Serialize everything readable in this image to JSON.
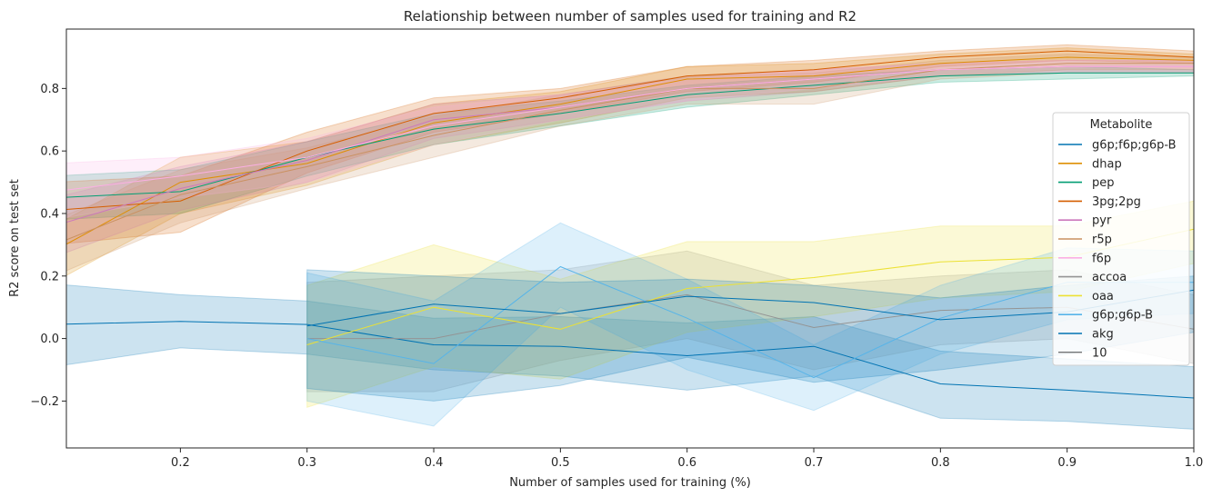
{
  "chart_data": {
    "type": "line",
    "title": "Relationship between number of samples used for training and R2",
    "xlabel": "Number of samples used for training (%)",
    "ylabel": "R2 score on test set",
    "xlim": [
      0.11,
      1.0
    ],
    "ylim": [
      -0.35,
      0.99
    ],
    "x_ticks": [
      0.2,
      0.3,
      0.4,
      0.5,
      0.6,
      0.7,
      0.8,
      0.9,
      1.0
    ],
    "x_tick_labels": [
      "0.2",
      "0.3",
      "0.4",
      "0.5",
      "0.6",
      "0.7",
      "0.8",
      "0.9",
      "1.0"
    ],
    "y_ticks": [
      -0.2,
      0.0,
      0.2,
      0.4,
      0.6,
      0.8
    ],
    "y_tick_labels": [
      "−0.2",
      "0.0",
      "0.2",
      "0.4",
      "0.6",
      "0.8"
    ],
    "grid": false,
    "legend": {
      "title": "Metabolite",
      "placement": "right",
      "size_entry": "10"
    },
    "series": [
      {
        "name": "g6p;f6p;g6p-B",
        "color": "#0173b2",
        "x": [
          0.1,
          0.2,
          0.3,
          0.4,
          0.5,
          0.6,
          0.7,
          0.8,
          0.9,
          1.0
        ],
        "y": [
          0.045,
          0.055,
          0.045,
          -0.02,
          -0.025,
          -0.055,
          -0.025,
          -0.145,
          -0.165,
          -0.19
        ],
        "lower": [
          -0.09,
          -0.03,
          -0.05,
          -0.1,
          -0.12,
          -0.165,
          -0.12,
          -0.255,
          -0.265,
          -0.29
        ],
        "upper": [
          0.175,
          0.14,
          0.12,
          0.065,
          0.07,
          0.05,
          0.07,
          -0.04,
          -0.065,
          -0.09
        ]
      },
      {
        "name": "dhap",
        "color": "#de8f05",
        "x": [
          0.1,
          0.2,
          0.3,
          0.4,
          0.5,
          0.6,
          0.7,
          0.8,
          0.9,
          1.0
        ],
        "y": [
          0.28,
          0.5,
          0.56,
          0.69,
          0.75,
          0.83,
          0.84,
          0.88,
          0.9,
          0.89
        ],
        "lower": [
          0.18,
          0.4,
          0.49,
          0.62,
          0.69,
          0.77,
          0.79,
          0.84,
          0.86,
          0.86
        ],
        "upper": [
          0.36,
          0.58,
          0.63,
          0.75,
          0.79,
          0.87,
          0.88,
          0.91,
          0.93,
          0.91
        ]
      },
      {
        "name": "pep",
        "color": "#029e73",
        "x": [
          0.1,
          0.2,
          0.3,
          0.4,
          0.5,
          0.6,
          0.7,
          0.8,
          0.9,
          1.0
        ],
        "y": [
          0.45,
          0.47,
          0.58,
          0.67,
          0.72,
          0.78,
          0.81,
          0.84,
          0.85,
          0.85
        ],
        "lower": [
          0.38,
          0.4,
          0.52,
          0.62,
          0.68,
          0.74,
          0.78,
          0.82,
          0.83,
          0.84
        ],
        "upper": [
          0.52,
          0.54,
          0.63,
          0.72,
          0.76,
          0.81,
          0.84,
          0.86,
          0.87,
          0.86
        ]
      },
      {
        "name": "3pg;2pg",
        "color": "#d55e00",
        "x": [
          0.1,
          0.2,
          0.3,
          0.4,
          0.5,
          0.6,
          0.7,
          0.8,
          0.9,
          1.0
        ],
        "y": [
          0.41,
          0.44,
          0.6,
          0.72,
          0.77,
          0.84,
          0.86,
          0.9,
          0.92,
          0.9
        ],
        "lower": [
          0.3,
          0.34,
          0.53,
          0.66,
          0.72,
          0.79,
          0.82,
          0.87,
          0.89,
          0.88
        ],
        "upper": [
          0.5,
          0.52,
          0.66,
          0.77,
          0.8,
          0.87,
          0.89,
          0.92,
          0.94,
          0.92
        ]
      },
      {
        "name": "pyr",
        "color": "#cc78bc",
        "x": [
          0.1,
          0.2,
          0.3,
          0.4,
          0.5,
          0.6,
          0.7,
          0.8,
          0.9,
          1.0
        ],
        "y": [
          0.36,
          0.48,
          0.57,
          0.7,
          0.74,
          0.8,
          0.83,
          0.86,
          0.87,
          0.87
        ],
        "lower": [
          0.26,
          0.41,
          0.5,
          0.64,
          0.7,
          0.76,
          0.79,
          0.84,
          0.85,
          0.85
        ],
        "upper": [
          0.45,
          0.55,
          0.63,
          0.75,
          0.78,
          0.84,
          0.86,
          0.88,
          0.89,
          0.89
        ]
      },
      {
        "name": "r5p",
        "color": "#ca9161",
        "x": [
          0.1,
          0.2,
          0.3,
          0.4,
          0.5,
          0.6,
          0.7,
          0.8,
          0.9,
          1.0
        ],
        "y": [
          0.3,
          0.46,
          0.55,
          0.65,
          0.73,
          0.8,
          0.8,
          0.86,
          0.88,
          0.88
        ],
        "lower": [
          0.2,
          0.37,
          0.48,
          0.58,
          0.68,
          0.75,
          0.75,
          0.83,
          0.85,
          0.85
        ],
        "upper": [
          0.38,
          0.54,
          0.61,
          0.71,
          0.78,
          0.84,
          0.85,
          0.89,
          0.91,
          0.9
        ]
      },
      {
        "name": "f6p",
        "color": "#fbafe4",
        "x": [
          0.1,
          0.2,
          0.3,
          0.4,
          0.5,
          0.6,
          0.7,
          0.8,
          0.9,
          1.0
        ],
        "y": [
          0.47,
          0.52,
          0.58,
          0.68,
          0.74,
          0.8,
          0.83,
          0.86,
          0.87,
          0.87
        ],
        "lower": [
          0.38,
          0.45,
          0.5,
          0.62,
          0.7,
          0.76,
          0.8,
          0.84,
          0.85,
          0.85
        ],
        "upper": [
          0.56,
          0.58,
          0.64,
          0.74,
          0.78,
          0.83,
          0.86,
          0.88,
          0.89,
          0.89
        ]
      },
      {
        "name": "accoa",
        "color": "#949494",
        "x": [
          0.3,
          0.4,
          0.5,
          0.6,
          0.7,
          0.8,
          0.9,
          1.0
        ],
        "y": [
          0.0,
          0.0,
          0.08,
          0.14,
          0.035,
          0.09,
          0.1,
          0.03
        ],
        "lower": [
          -0.17,
          -0.17,
          -0.07,
          0.0,
          -0.1,
          -0.02,
          0.0,
          -0.08
        ],
        "upper": [
          0.18,
          0.2,
          0.22,
          0.28,
          0.17,
          0.2,
          0.22,
          0.14
        ]
      },
      {
        "name": "oaa",
        "color": "#ece133",
        "x": [
          0.3,
          0.4,
          0.5,
          0.6,
          0.7,
          0.8,
          0.9,
          1.0
        ],
        "y": [
          -0.02,
          0.1,
          0.03,
          0.16,
          0.195,
          0.245,
          0.26,
          0.35
        ],
        "lower": [
          -0.22,
          -0.09,
          -0.13,
          0.02,
          0.07,
          0.13,
          0.15,
          0.24
        ],
        "upper": [
          0.17,
          0.3,
          0.19,
          0.31,
          0.31,
          0.36,
          0.36,
          0.44
        ]
      },
      {
        "name": "g6p;g6p-B",
        "color": "#56b4e9",
        "x": [
          0.3,
          0.4,
          0.5,
          0.6,
          0.7,
          0.8,
          0.9,
          1.0
        ],
        "y": [
          0.0,
          -0.08,
          0.23,
          0.065,
          -0.125,
          0.065,
          0.18,
          0.18
        ],
        "lower": [
          -0.2,
          -0.28,
          0.1,
          -0.1,
          -0.23,
          -0.05,
          0.06,
          0.08
        ],
        "upper": [
          0.21,
          0.12,
          0.37,
          0.19,
          -0.02,
          0.17,
          0.29,
          0.28
        ]
      },
      {
        "name": "akg",
        "color": "#0173b2",
        "x": [
          0.3,
          0.4,
          0.5,
          0.6,
          0.7,
          0.8,
          0.9,
          1.0
        ],
        "y": [
          0.04,
          0.11,
          0.08,
          0.135,
          0.115,
          0.06,
          0.085,
          0.155
        ],
        "lower": [
          -0.16,
          -0.2,
          -0.15,
          -0.06,
          -0.14,
          -0.1,
          -0.05,
          0.02
        ],
        "upper": [
          0.22,
          0.2,
          0.18,
          0.19,
          0.17,
          0.13,
          0.17,
          0.2
        ]
      }
    ]
  }
}
